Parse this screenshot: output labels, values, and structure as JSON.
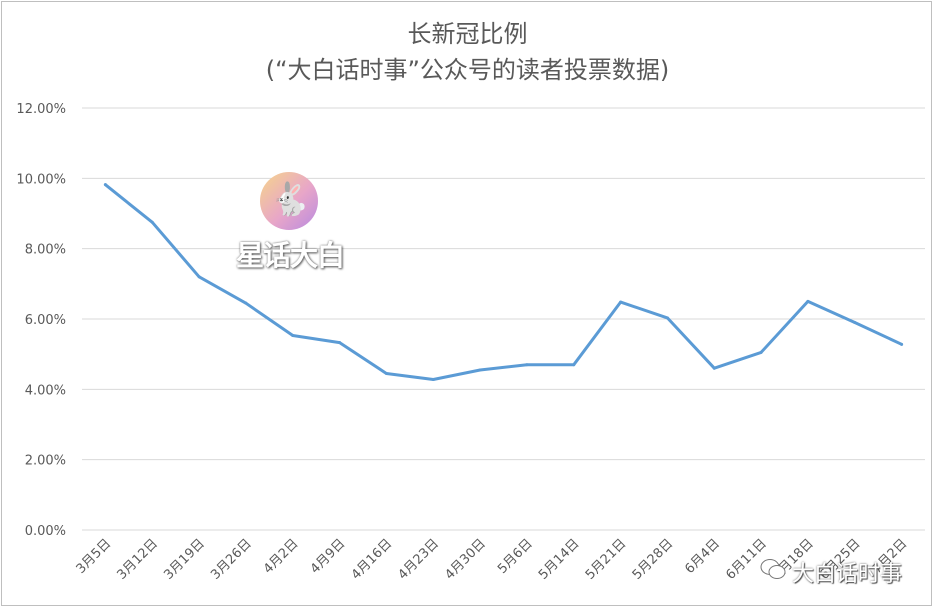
{
  "title_line1": "长新冠比例",
  "title_line2": "(“大白话时事”公众号的读者投票数据)",
  "watermark": {
    "text": "星话大白",
    "icon": "rabbit-logo-icon"
  },
  "corner_watermark": {
    "text": "大白话时事",
    "icon": "wechat-icon"
  },
  "colors": {
    "line": "#5b9bd5",
    "grid": "#d9d9d9",
    "text": "#595959"
  },
  "chart_data": {
    "type": "line",
    "title": "长新冠比例 (“大白话时事”公众号的读者投票数据)",
    "xlabel": "",
    "ylabel": "",
    "categories": [
      "3月5日",
      "3月12日",
      "3月19日",
      "3月26日",
      "4月2日",
      "4月9日",
      "4月16日",
      "4月23日",
      "4月30日",
      "5月6日",
      "5月14日",
      "5月21日",
      "5月28日",
      "6月4日",
      "6月11日",
      "6月18日",
      "6月25日",
      "7月2日"
    ],
    "values": [
      0.0982,
      0.0875,
      0.072,
      0.0645,
      0.0553,
      0.0533,
      0.0445,
      0.0428,
      0.0455,
      0.047,
      0.047,
      0.0648,
      0.0603,
      0.046,
      0.0505,
      0.065,
      0.059,
      0.0528
    ],
    "yticks": [
      "0.00%",
      "2.00%",
      "4.00%",
      "6.00%",
      "8.00%",
      "10.00%",
      "12.00%"
    ],
    "ylim": [
      0,
      0.12
    ],
    "grid": true,
    "legend": "none"
  }
}
